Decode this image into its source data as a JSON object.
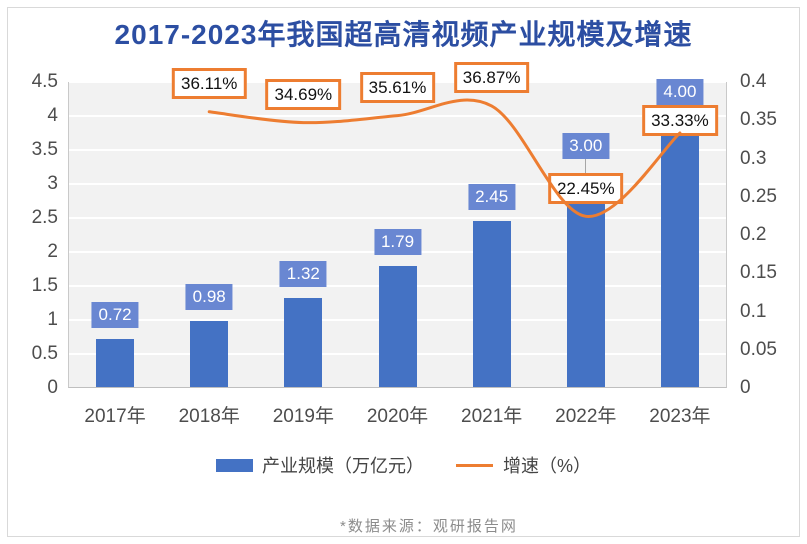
{
  "chart_data": {
    "type": "bar",
    "title": "2017-2023年我国超高清视频产业规模及增速",
    "categories": [
      "2017年",
      "2018年",
      "2019年",
      "2020年",
      "2021年",
      "2022年",
      "2023年"
    ],
    "series": [
      {
        "name": "产业规模（万亿元）",
        "type": "bar",
        "axis": "left",
        "color": "#4472C4",
        "values": [
          0.72,
          0.98,
          1.32,
          1.79,
          2.45,
          3.0,
          4.0
        ],
        "labels": [
          "0.72",
          "0.98",
          "1.32",
          "1.79",
          "2.45",
          "3.00",
          "4.00"
        ]
      },
      {
        "name": "增速（%）",
        "type": "line",
        "axis": "right",
        "color": "#ED7D31",
        "values": [
          null,
          0.3611,
          0.3469,
          0.3561,
          0.3687,
          0.2245,
          0.3333
        ],
        "labels": [
          null,
          "36.11%",
          "34.69%",
          "35.61%",
          "36.87%",
          "22.45%",
          "33.33%"
        ]
      }
    ],
    "left_axis": {
      "min": 0,
      "max": 4.5,
      "step": 0.5,
      "ticks": [
        "0",
        "0.5",
        "1",
        "1.5",
        "2",
        "2.5",
        "3",
        "3.5",
        "4",
        "4.5"
      ]
    },
    "right_axis": {
      "min": 0,
      "max": 0.4,
      "step": 0.05,
      "ticks": [
        "0",
        "0.05",
        "0.1",
        "0.15",
        "0.2",
        "0.25",
        "0.3",
        "0.35",
        "0.4"
      ]
    },
    "grid": true,
    "legend_position": "bottom"
  },
  "legend": {
    "items": [
      {
        "label": "产业规模（万亿元）",
        "color": "#4472C4",
        "type": "bar"
      },
      {
        "label": "增速（%）",
        "color": "#ED7D31",
        "type": "line"
      }
    ]
  },
  "footer": {
    "source": "*数据来源：观研报告网"
  },
  "colors": {
    "title": "#2C4EA2",
    "bar": "#4472C4",
    "bar_label_bg": "#6987D2",
    "line": "#ED7D31",
    "plot_bg": "#F2F2F2",
    "axis_text": "#4D4D4D",
    "source_text": "#8C8C8C"
  }
}
